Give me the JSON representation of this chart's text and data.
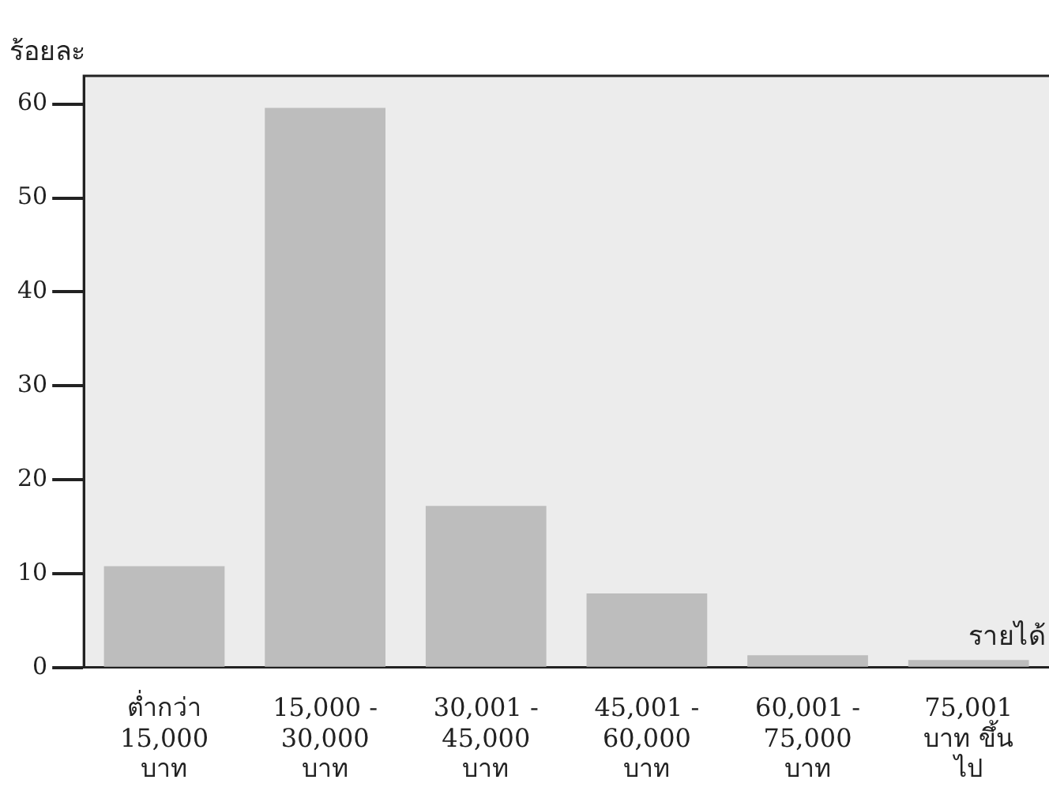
{
  "chart_data": {
    "type": "bar",
    "ylabel": "ร้อยละ",
    "xlabel": "รายได้",
    "categories": [
      "ต่ำกว่า\n15,000\nบาท",
      "15,000 -\n30,000\nบาท",
      "30,001 -\n45,000\nบาท",
      "45,001 -\n60,000\nบาท",
      "60,001 -\n75,000\nบาท",
      "75,001\nบาท ขึ้น\nไป"
    ],
    "values": [
      10.8,
      59.6,
      17.2,
      7.9,
      1.3,
      0.8
    ],
    "color": "#bdbdbd",
    "ylim": [
      0,
      63
    ],
    "yticks": [
      0,
      10,
      20,
      30,
      40,
      50,
      60
    ],
    "grid": false,
    "legend": false
  }
}
